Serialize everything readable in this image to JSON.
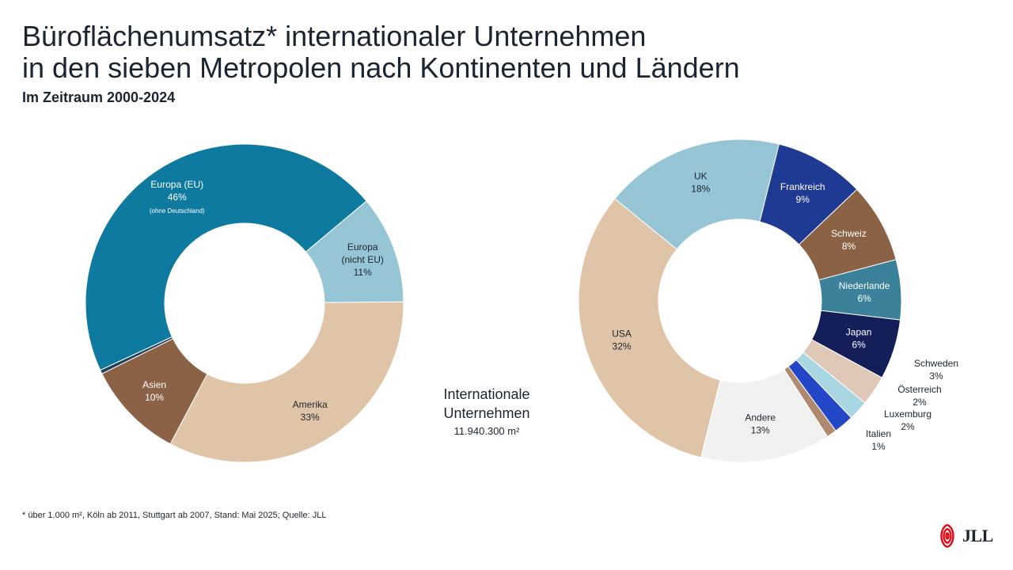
{
  "header": {
    "title_line1": "Büroflächenumsatz* internationaler Unternehmen",
    "title_line2": "in den sieben Metropolen nach Kontinenten und Ländern",
    "subtitle": "Im Zeitraum 2000-2024"
  },
  "center_label": {
    "line1": "Internationale",
    "line2": "Unternehmen",
    "value": "11.940.300 m²"
  },
  "footnote": "* über 1.000 m², Köln ab 2011, Stuttgart ab 2007, Stand: Mai 2025; Quelle: JLL",
  "logo": {
    "text": "JLL",
    "color": "#e30613"
  },
  "chart_data": [
    {
      "type": "pie",
      "title": "",
      "start_angle_deg": 0,
      "slices": [
        {
          "label": "Amerika",
          "value": 33,
          "display": "33%",
          "color": "#e0c4a8",
          "text_color": "#1c2430"
        },
        {
          "label": "Asien",
          "value": 10,
          "display": "10%",
          "color": "#8b6245",
          "text_color": "#ffffff"
        },
        {
          "label": "",
          "value": 0.4,
          "display": "",
          "color": "#1f3e5a",
          "text_color": "#ffffff"
        },
        {
          "label": "Europa (EU)",
          "value": 46,
          "display": "46%",
          "note": "(ohne Deutschland)",
          "color": "#0e7aa0",
          "text_color": "#ffffff"
        },
        {
          "label": "Europa\n(nicht EU)",
          "value": 11,
          "display": "11%",
          "color": "#96c5d6",
          "text_color": "#1c2430"
        }
      ]
    },
    {
      "type": "pie",
      "title": "",
      "slices": [
        {
          "label": "Frankreich",
          "value": 9,
          "display": "9%",
          "color": "#1f3a93",
          "text_color": "#ffffff"
        },
        {
          "label": "Schweiz",
          "value": 8,
          "display": "8%",
          "color": "#8b6245",
          "text_color": "#ffffff"
        },
        {
          "label": "Niederlande",
          "value": 6,
          "display": "6%",
          "color": "#3a8199",
          "text_color": "#ffffff"
        },
        {
          "label": "Japan",
          "value": 6,
          "display": "6%",
          "color": "#141f5a",
          "text_color": "#ffffff"
        },
        {
          "label": "Schweden",
          "value": 3,
          "display": "3%",
          "color": "#dfc8b8",
          "text_color": "#1c2430",
          "outside": true
        },
        {
          "label": "Österreich",
          "value": 2,
          "display": "2%",
          "color": "#a8d6e3",
          "text_color": "#1c2430",
          "outside": true
        },
        {
          "label": "Luxemburg",
          "value": 2,
          "display": "2%",
          "color": "#2347c7",
          "text_color": "#1c2430",
          "outside": true
        },
        {
          "label": "Italien",
          "value": 1,
          "display": "1%",
          "color": "#b08a70",
          "text_color": "#1c2430",
          "outside": true
        },
        {
          "label": "Andere",
          "value": 13,
          "display": "13%",
          "color": "#f1f1f1",
          "text_color": "#1c2430"
        },
        {
          "label": "USA",
          "value": 32,
          "display": "32%",
          "color": "#e0c4a8",
          "text_color": "#1c2430"
        },
        {
          "label": "UK",
          "value": 18,
          "display": "18%",
          "color": "#96c5d6",
          "text_color": "#1c2430"
        }
      ]
    }
  ]
}
